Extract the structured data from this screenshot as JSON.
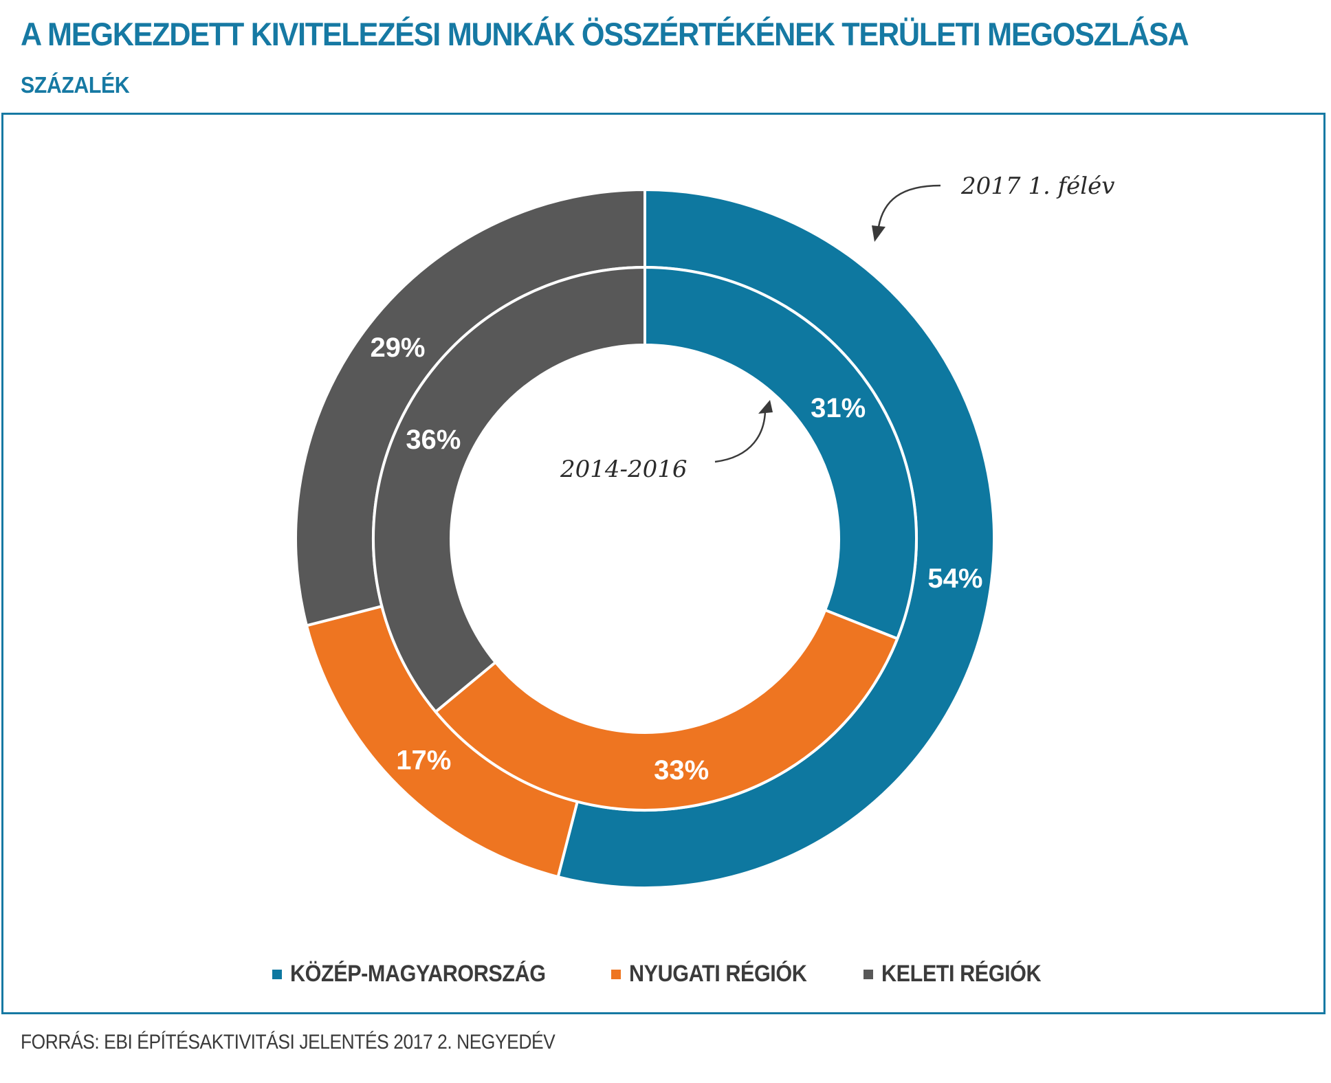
{
  "title": "A MEGKEZDETT KIVITELEZÉSI MUNKÁK ÖSSZÉRTÉKÉNEK TERÜLETI MEGOSZLÁSA",
  "subtitle": "SZÁZALÉK",
  "source": "FORRÁS: EBI ÉPÍTÉSAKTIVITÁSI JELENTÉS 2017 2. NEGYEDÉV",
  "colors": {
    "accent": "#1679a3",
    "kozep": "#0e78a0",
    "nyugati": "#ee7521",
    "keleti": "#585858"
  },
  "chart_data": {
    "type": "pie",
    "variant": "nested-donut",
    "categories": [
      "KÖZÉP-MAGYARORSZÁG",
      "NYUGATI RÉGIÓK",
      "KELETI RÉGIÓK"
    ],
    "series": [
      {
        "name": "2017 1. félév",
        "values": [
          54,
          17,
          29
        ],
        "labels": [
          "54%",
          "17%",
          "29%"
        ]
      },
      {
        "name": "2014-2016",
        "values": [
          31,
          33,
          36
        ],
        "labels": [
          "31%",
          "33%",
          "36%"
        ]
      }
    ],
    "annotations": [
      "2017 1. félév",
      "2014-2016"
    ],
    "legend": "bottom-center"
  },
  "legend": [
    {
      "label": "KÖZÉP-MAGYARORSZÁG",
      "color": "#0e78a0"
    },
    {
      "label": "NYUGATI RÉGIÓK",
      "color": "#ee7521"
    },
    {
      "label": "KELETI RÉGIÓK",
      "color": "#585858"
    }
  ]
}
